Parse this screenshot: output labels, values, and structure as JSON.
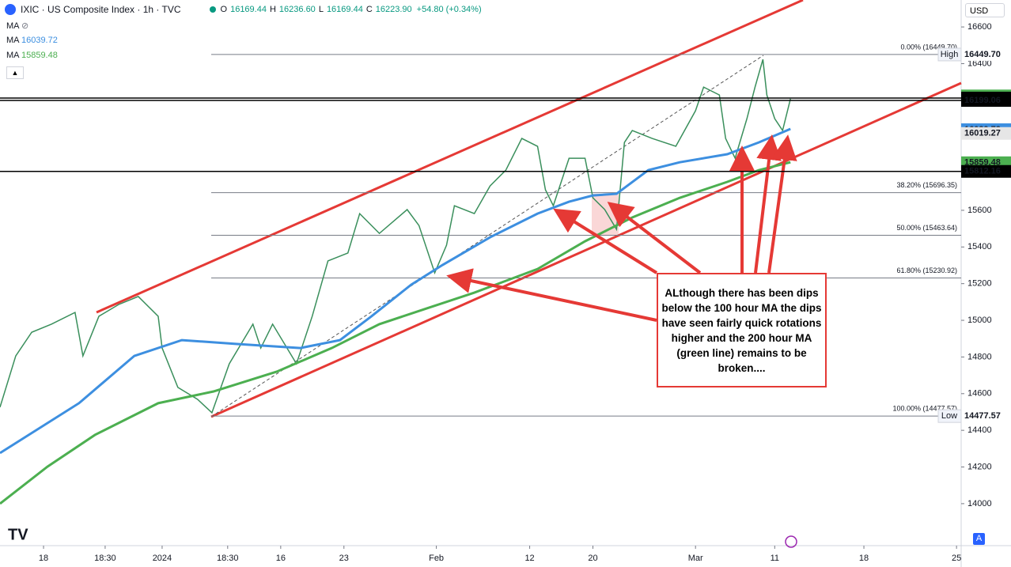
{
  "header": {
    "symbol": "IXIC · US Composite Index · 1h · TVC",
    "ohlc": [
      {
        "key": "O",
        "value": "16169.44"
      },
      {
        "key": "H",
        "value": "16236.60"
      },
      {
        "key": "L",
        "value": "16169.44"
      },
      {
        "key": "C",
        "value": "16223.90"
      }
    ],
    "change": "+54.80 (+0.34%)"
  },
  "indicators": [
    {
      "name": "MA"
    },
    {
      "name": "MA",
      "value": "16039.72"
    },
    {
      "name": "MA",
      "value": "15859.48"
    }
  ],
  "currency": "USD",
  "auto_button": "A",
  "chart_data": {
    "type": "line",
    "xlim": [
      0,
      415
    ],
    "ylim": [
      13771,
      16747
    ],
    "xticks": [
      {
        "value": 18.8,
        "label": "18"
      },
      {
        "value": 45.4,
        "label": "18:30"
      },
      {
        "value": 70,
        "label": "2024"
      },
      {
        "value": 98.3,
        "label": "18:30"
      },
      {
        "value": 121.2,
        "label": "16"
      },
      {
        "value": 148.5,
        "label": "23"
      },
      {
        "value": 188.4,
        "label": "Feb"
      },
      {
        "value": 228.7,
        "label": "12"
      },
      {
        "value": 256,
        "label": "20"
      },
      {
        "value": 300.3,
        "label": "Mar"
      },
      {
        "value": 334.5,
        "label": "11"
      },
      {
        "value": 373,
        "label": "18"
      },
      {
        "value": 413,
        "label": "25"
      }
    ],
    "yticks": [
      14000,
      14200,
      14400,
      14600,
      14800,
      15000,
      15200,
      15400,
      15600,
      15800,
      16000,
      16200,
      16400,
      16600
    ],
    "grid": false,
    "series": [
      {
        "color": "#3a8f5c",
        "x": [
          0,
          6.8,
          13.7,
          22.2,
          32.4,
          35.8,
          42.7,
          51.2,
          59.7,
          68.3,
          70,
          76.8,
          85.3,
          91.5,
          99,
          109.2,
          112.6,
          117.7,
          128,
          134.8,
          141.6,
          150.2,
          155.3,
          163.8,
          175.8,
          180.9,
          187.7,
          192.8,
          196.2,
          204.8,
          211.6,
          218.4,
          225.3,
          232.1,
          235.5,
          238.9,
          245.7,
          252.6,
          256,
          261.1,
          266.2,
          269.6,
          273,
          281.6,
          291.8,
          300.3,
          303.8,
          310.6,
          313.3,
          317.4,
          322.5,
          326,
          329.4,
          331.1,
          334.5,
          337.9,
          341.3
        ],
        "values": [
          14526,
          14806,
          14935,
          14979,
          15043,
          14806,
          15022,
          15086,
          15130,
          15022,
          14849,
          14634,
          14569,
          14496,
          14763,
          14979,
          14849,
          14979,
          14763,
          15022,
          15324,
          15367,
          15582,
          15474,
          15604,
          15517,
          15259,
          15410,
          15625,
          15582,
          15733,
          15819,
          15992,
          15949,
          15712,
          15625,
          15884,
          15884,
          15668,
          15604,
          15496,
          15970,
          16035,
          15992,
          15949,
          16143,
          16272,
          16229,
          15992,
          15884,
          16100,
          16272,
          16423,
          16229,
          16100,
          16035,
          16208
        ]
      },
      {
        "color": "#3d8fe0",
        "x": [
          0,
          34.1,
          58,
          78.5,
          102.4,
          129.7,
          146.8,
          160.4,
          177.5,
          191.1,
          211.6,
          232.1,
          245.7,
          256,
          266.2,
          279.9,
          293.5,
          314,
          327.6,
          341.3
        ],
        "values": [
          14276,
          14548,
          14806,
          14892,
          14871,
          14849,
          14892,
          15022,
          15194,
          15302,
          15453,
          15582,
          15647,
          15681,
          15690,
          15819,
          15862,
          15906,
          15970,
          16044
        ]
      },
      {
        "color": "#4caf50",
        "x": [
          0,
          20.5,
          41,
          68.3,
          92.2,
          119.5,
          143.3,
          163.8,
          184.3,
          204.8,
          232.1,
          252.6,
          273,
          293.5,
          314,
          327.6,
          341.3
        ],
        "values": [
          14000,
          14202,
          14375,
          14548,
          14612,
          14720,
          14849,
          14979,
          15065,
          15151,
          15280,
          15431,
          15561,
          15668,
          15755,
          15819,
          15862
        ]
      }
    ],
    "fib_levels": [
      {
        "value": 16449.7,
        "label": "0.00% (16449.70)"
      },
      {
        "value": 15696.35,
        "label": "38.20% (15696.35)"
      },
      {
        "value": 15463.64,
        "label": "50.00% (15463.64)"
      },
      {
        "value": 15230.92,
        "label": "61.80% (15230.92)"
      },
      {
        "value": 14477.57,
        "label": "100.00% (14477.57)"
      }
    ],
    "price_labels": [
      {
        "value": 16449.7,
        "label": "16449.70",
        "tag": "High",
        "color": "#ffffff",
        "text_color": "#131722"
      },
      {
        "value": 16223.9,
        "label": "16223.90",
        "color": "#4caf50",
        "text_color": "#ffffff"
      },
      {
        "value": 16212.23,
        "label": "16212.23",
        "color": "#000000",
        "text_color": "#ffffff",
        "line": true
      },
      {
        "value": 16199.06,
        "label": "16199.06",
        "color": "#000000",
        "text_color": "#ffffff",
        "line": true
      },
      {
        "value": 16039.72,
        "label": "16039.72",
        "color": "#3d8fe0",
        "text_color": "#ffffff"
      },
      {
        "value": 16019.27,
        "label": "16019.27",
        "color": "#e6e6e6",
        "text_color": "#131722"
      },
      {
        "value": 15859.48,
        "label": "15859.48",
        "color": "#4caf50",
        "text_color": "#ffffff"
      },
      {
        "value": 15812.16,
        "label": "15812.16",
        "color": "#000000",
        "text_color": "#ffffff",
        "line": true
      },
      {
        "value": 14477.57,
        "label": "14477.57",
        "tag": "Low",
        "color": "#ffffff",
        "text_color": "#131722"
      }
    ],
    "annotation": "ALthough there has been dips below the 100 hour MA the dips have seen fairly quick rotations higher and the 200 hour MA (green line) remains to be broken...."
  }
}
